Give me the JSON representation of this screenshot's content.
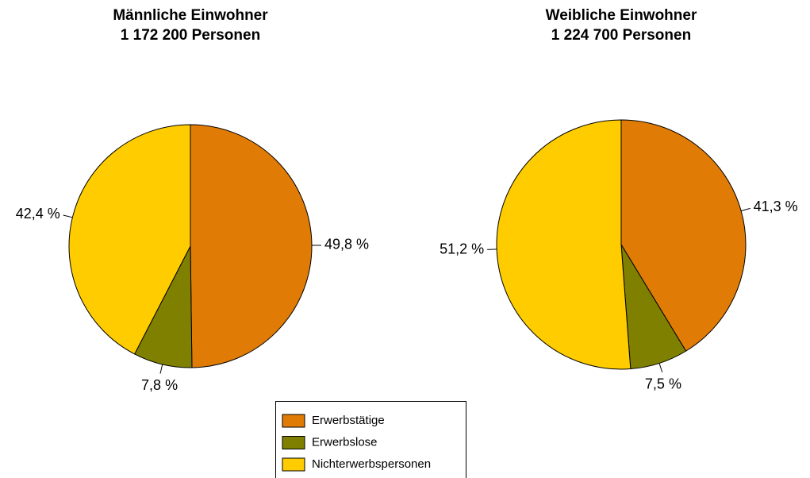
{
  "chart_data": [
    {
      "type": "pie",
      "title": "Männliche Einwohner",
      "subtitle": "1 172 200 Personen",
      "categories": [
        "Erwerbstätige",
        "Erwerbslose",
        "Nichterwerbspersonen"
      ],
      "values": [
        49.8,
        7.8,
        42.4
      ],
      "value_labels": [
        "49,8 %",
        "7,8 %",
        "42,4 %"
      ],
      "colors": [
        "#e07b06",
        "#808000",
        "#ffcc00"
      ]
    },
    {
      "type": "pie",
      "title": "Weibliche Einwohner",
      "subtitle": "1 224 700 Personen",
      "categories": [
        "Erwerbstätige",
        "Erwerbslose",
        "Nichterwerbspersonen"
      ],
      "values": [
        41.3,
        7.5,
        51.2
      ],
      "value_labels": [
        "41,3 %",
        "7,5 %",
        "51,2 %"
      ],
      "colors": [
        "#e07b06",
        "#808000",
        "#ffcc00"
      ]
    }
  ]
}
